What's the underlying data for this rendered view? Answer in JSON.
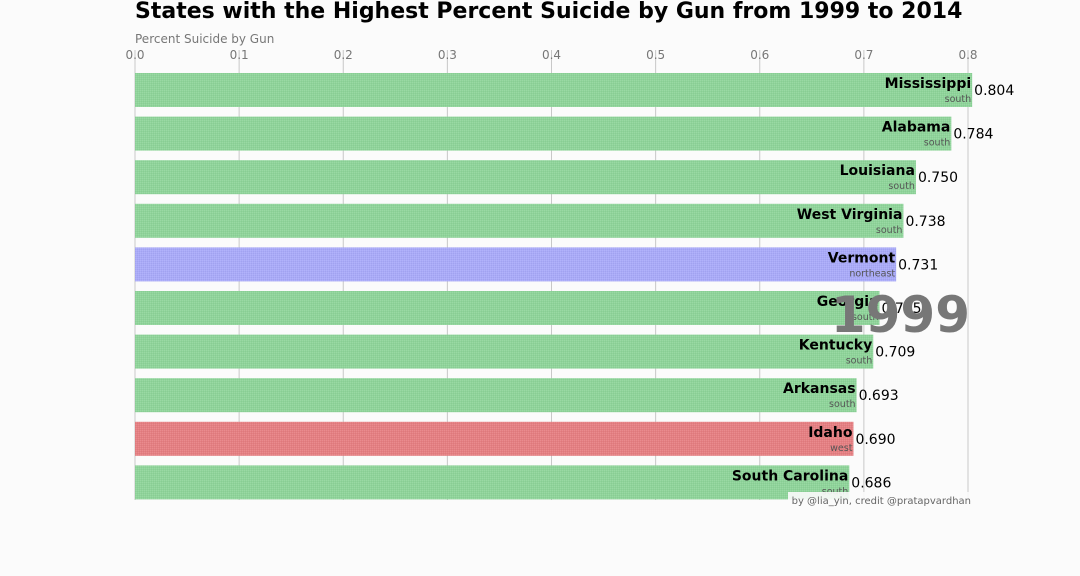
{
  "chart_data": {
    "type": "bar",
    "orientation": "horizontal",
    "title": "States with the Highest Percent Suicide by Gun from 1999 to 2014",
    "xlabel": "Percent Suicide by Gun",
    "xlim": [
      0,
      0.8
    ],
    "xticks": [
      "0.0",
      "0.1",
      "0.2",
      "0.3",
      "0.4",
      "0.5",
      "0.6",
      "0.7",
      "0.8"
    ],
    "grid": true,
    "year": "1999",
    "bars": [
      {
        "state": "Mississippi",
        "region": "south",
        "value": 0.804,
        "value_label": "0.804"
      },
      {
        "state": "Alabama",
        "region": "south",
        "value": 0.784,
        "value_label": "0.784"
      },
      {
        "state": "Louisiana",
        "region": "south",
        "value": 0.75,
        "value_label": "0.750"
      },
      {
        "state": "West Virginia",
        "region": "south",
        "value": 0.738,
        "value_label": "0.738"
      },
      {
        "state": "Vermont",
        "region": "northeast",
        "value": 0.731,
        "value_label": "0.731"
      },
      {
        "state": "Georgia",
        "region": "south",
        "value": 0.715,
        "value_label": "0.715"
      },
      {
        "state": "Kentucky",
        "region": "south",
        "value": 0.709,
        "value_label": "0.709"
      },
      {
        "state": "Arkansas",
        "region": "south",
        "value": 0.693,
        "value_label": "0.693"
      },
      {
        "state": "Idaho",
        "region": "west",
        "value": 0.69,
        "value_label": "0.690"
      },
      {
        "state": "South Carolina",
        "region": "south",
        "value": 0.686,
        "value_label": "0.686"
      }
    ],
    "region_colors": {
      "south": "#8fd49a",
      "northeast": "#a9aaf8",
      "west": "#e57f82"
    },
    "credit": "by @lia_yin, credit @pratapvardhan"
  }
}
